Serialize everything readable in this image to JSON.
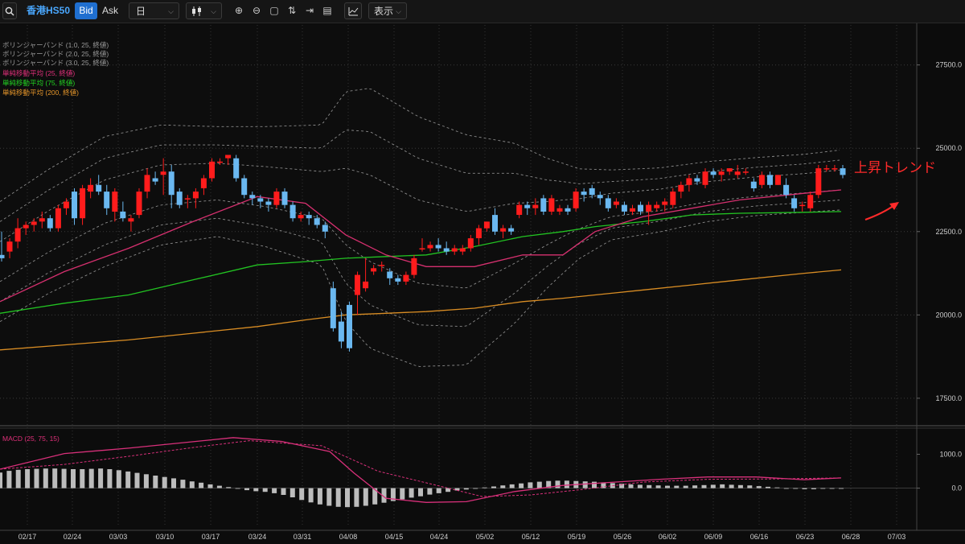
{
  "toolbar": {
    "symbol": "香港HS50",
    "bid_label": "Bid",
    "ask_label": "Ask",
    "period": "日",
    "display_label": "表示"
  },
  "legend": [
    {
      "text": "ボリンジャーバンド (1.0, 25, 終値)",
      "color": "#9a9a9a"
    },
    {
      "text": "ボリンジャーバンド (2.0, 25, 終値)",
      "color": "#9a9a9a"
    },
    {
      "text": "ボリンジャーバンド (3.0, 25, 終値)",
      "color": "#9a9a9a"
    },
    {
      "text": "単純移動平均 (25, 終値)",
      "color": "#e0307a"
    },
    {
      "text": "単純移動平均 (75, 終値)",
      "color": "#22d322"
    },
    {
      "text": "単純移動平均 (200, 終値)",
      "color": "#e6962a"
    }
  ],
  "macd_label": "MACD (25, 75, 15)",
  "annotation": "上昇トレンド",
  "colors": {
    "up": "#ff1c1c",
    "down": "#6ab8f0",
    "bb": "#8a8a8a",
    "sma25": "#d6306f",
    "sma75": "#22c322",
    "sma200": "#d98d24",
    "macd": "#d8307a",
    "hist": "#bcbcbc"
  },
  "chart_data": {
    "type": "candlestick",
    "y_ticks": [
      "17500.0",
      "20000.0",
      "22500.0",
      "25000.0",
      "27500.0"
    ],
    "ylim": [
      16700,
      28700
    ],
    "x_ticks": [
      "02/17",
      "02/24",
      "03/03",
      "03/10",
      "03/17",
      "03/24",
      "03/31",
      "04/08",
      "04/15",
      "04/24",
      "05/02",
      "05/12",
      "05/19",
      "05/26",
      "06/02",
      "06/09",
      "06/16",
      "06/23",
      "06/28",
      "07/03"
    ],
    "candles": [
      [
        21800,
        22500,
        21600,
        21700
      ],
      [
        21900,
        22300,
        21700,
        22200
      ],
      [
        22200,
        22900,
        22000,
        22600
      ],
      [
        22600,
        22800,
        22400,
        22700
      ],
      [
        22700,
        22900,
        22500,
        22800
      ],
      [
        22800,
        23100,
        22600,
        22900
      ],
      [
        22900,
        23000,
        22500,
        22600
      ],
      [
        22600,
        23300,
        22500,
        23200
      ],
      [
        23200,
        23500,
        23000,
        23400
      ],
      [
        23700,
        23800,
        22700,
        22900
      ],
      [
        22900,
        23900,
        22700,
        23800
      ],
      [
        23700,
        24100,
        23500,
        23900
      ],
      [
        23900,
        24200,
        23600,
        23700
      ],
      [
        23700,
        23900,
        23000,
        23200
      ],
      [
        23100,
        23800,
        22800,
        23700
      ],
      [
        23100,
        23400,
        22800,
        22900
      ],
      [
        22800,
        23000,
        22500,
        22900
      ],
      [
        23000,
        23800,
        22900,
        23700
      ],
      [
        23700,
        24400,
        23500,
        24200
      ],
      [
        24100,
        24300,
        23900,
        24000
      ],
      [
        24200,
        24700,
        23600,
        24300
      ],
      [
        24300,
        24500,
        23200,
        23600
      ],
      [
        23700,
        23800,
        23200,
        23300
      ],
      [
        23500,
        23600,
        23200,
        23500
      ],
      [
        23500,
        23800,
        23200,
        23700
      ],
      [
        23800,
        24200,
        23600,
        24100
      ],
      [
        24100,
        24700,
        24000,
        24600
      ],
      [
        24600,
        24700,
        24500,
        24600
      ],
      [
        24700,
        24800,
        24500,
        24800
      ],
      [
        24700,
        24800,
        24000,
        24100
      ],
      [
        24100,
        24200,
        23500,
        23600
      ],
      [
        23600,
        23700,
        23300,
        23500
      ],
      [
        23500,
        23600,
        23200,
        23400
      ],
      [
        23400,
        23500,
        23100,
        23300
      ],
      [
        23300,
        23800,
        23200,
        23700
      ],
      [
        23700,
        23800,
        23200,
        23300
      ],
      [
        23300,
        23400,
        22800,
        22900
      ],
      [
        22900,
        23100,
        22800,
        23000
      ],
      [
        23000,
        23100,
        22700,
        22900
      ],
      [
        22900,
        23000,
        22600,
        22700
      ],
      [
        22700,
        22800,
        22300,
        22500
      ],
      [
        20800,
        21000,
        19500,
        19600
      ],
      [
        19800,
        20100,
        19000,
        19200
      ],
      [
        20300,
        20400,
        18900,
        19000
      ],
      [
        20600,
        21300,
        20000,
        21200
      ],
      [
        20800,
        21700,
        20700,
        21000
      ],
      [
        21300,
        21500,
        21200,
        21400
      ],
      [
        21500,
        21600,
        21300,
        21500
      ],
      [
        21300,
        21400,
        20900,
        21100
      ],
      [
        21100,
        21200,
        20900,
        21000
      ],
      [
        21000,
        21300,
        20900,
        21200
      ],
      [
        21200,
        21800,
        21100,
        21700
      ],
      [
        22000,
        22300,
        21900,
        22000
      ],
      [
        22000,
        22200,
        21900,
        22100
      ],
      [
        22100,
        22300,
        21900,
        22000
      ],
      [
        22000,
        22200,
        21800,
        21900
      ],
      [
        21900,
        22100,
        21800,
        22000
      ],
      [
        21900,
        22100,
        21800,
        22000
      ],
      [
        22000,
        22400,
        21900,
        22300
      ],
      [
        22300,
        22700,
        22100,
        22600
      ],
      [
        22600,
        22800,
        22500,
        22800
      ],
      [
        23000,
        23200,
        22400,
        22500
      ],
      [
        22500,
        22700,
        22300,
        22600
      ],
      [
        22600,
        22700,
        22400,
        22500
      ],
      [
        23000,
        23400,
        22900,
        23300
      ],
      [
        23300,
        23400,
        23000,
        23200
      ],
      [
        23200,
        23500,
        23000,
        23300
      ],
      [
        23500,
        23600,
        23000,
        23100
      ],
      [
        23100,
        23600,
        23000,
        23500
      ],
      [
        23100,
        23300,
        23000,
        23200
      ],
      [
        23200,
        23300,
        23000,
        23100
      ],
      [
        23200,
        23800,
        23100,
        23700
      ],
      [
        23700,
        23800,
        23400,
        23600
      ],
      [
        23800,
        23900,
        23500,
        23600
      ],
      [
        23600,
        23700,
        23300,
        23500
      ],
      [
        23500,
        23600,
        23100,
        23200
      ],
      [
        23300,
        23500,
        23200,
        23400
      ],
      [
        23300,
        23400,
        23000,
        23100
      ],
      [
        23100,
        23300,
        23000,
        23200
      ],
      [
        23300,
        23400,
        23000,
        23100
      ],
      [
        23100,
        23400,
        22700,
        23300
      ],
      [
        23200,
        23400,
        23100,
        23300
      ],
      [
        23300,
        23500,
        23100,
        23400
      ],
      [
        23300,
        23800,
        23200,
        23700
      ],
      [
        23700,
        24000,
        23500,
        23900
      ],
      [
        23900,
        24200,
        23700,
        24100
      ],
      [
        24100,
        24200,
        23900,
        24000
      ],
      [
        23900,
        24400,
        23800,
        24300
      ],
      [
        24300,
        24400,
        24100,
        24200
      ],
      [
        24200,
        24400,
        24000,
        24300
      ],
      [
        24300,
        24400,
        24200,
        24400
      ],
      [
        24200,
        24500,
        24100,
        24300
      ],
      [
        24300,
        24400,
        24200,
        24300
      ],
      [
        24000,
        24100,
        23700,
        23800
      ],
      [
        23900,
        24300,
        23800,
        24200
      ],
      [
        24200,
        24300,
        23800,
        23900
      ],
      [
        23900,
        24200,
        23900,
        24200
      ],
      [
        23900,
        24100,
        23500,
        23600
      ],
      [
        23500,
        23600,
        23100,
        23200
      ],
      [
        23300,
        23400,
        23100,
        23300
      ],
      [
        23200,
        23700,
        23100,
        23600
      ],
      [
        23600,
        24500,
        23500,
        24400
      ],
      [
        24400,
        24500,
        24300,
        24400
      ],
      [
        24400,
        24500,
        24300,
        24400
      ],
      [
        24400,
        24500,
        24100,
        24200
      ]
    ],
    "sma25": [
      [
        0,
        20400
      ],
      [
        80,
        21300
      ],
      [
        160,
        22000
      ],
      [
        240,
        22800
      ],
      [
        320,
        23550
      ],
      [
        380,
        23350
      ],
      [
        430,
        22400
      ],
      [
        480,
        21800
      ],
      [
        530,
        21450
      ],
      [
        590,
        21450
      ],
      [
        650,
        21800
      ],
      [
        700,
        21800
      ],
      [
        740,
        22500
      ],
      [
        800,
        22950
      ],
      [
        860,
        23200
      ],
      [
        920,
        23450
      ],
      [
        1000,
        23650
      ],
      [
        1046,
        23750
      ]
    ],
    "sma75": [
      [
        0,
        20050
      ],
      [
        80,
        20350
      ],
      [
        160,
        20600
      ],
      [
        240,
        21050
      ],
      [
        320,
        21500
      ],
      [
        380,
        21600
      ],
      [
        430,
        21700
      ],
      [
        480,
        21750
      ],
      [
        530,
        21800
      ],
      [
        590,
        22050
      ],
      [
        650,
        22350
      ],
      [
        700,
        22500
      ],
      [
        740,
        22650
      ],
      [
        800,
        22800
      ],
      [
        860,
        23000
      ],
      [
        920,
        23050
      ],
      [
        1000,
        23080
      ],
      [
        1046,
        23100
      ]
    ],
    "sma200": [
      [
        0,
        18950
      ],
      [
        80,
        19100
      ],
      [
        160,
        19250
      ],
      [
        240,
        19450
      ],
      [
        320,
        19650
      ],
      [
        380,
        19850
      ],
      [
        430,
        20000
      ],
      [
        480,
        20050
      ],
      [
        530,
        20100
      ],
      [
        590,
        20200
      ],
      [
        650,
        20400
      ],
      [
        700,
        20500
      ],
      [
        740,
        20600
      ],
      [
        800,
        20750
      ],
      [
        860,
        20900
      ],
      [
        920,
        21050
      ],
      [
        1000,
        21250
      ],
      [
        1046,
        21350
      ]
    ],
    "bb_center": [
      [
        0,
        21600
      ],
      [
        60,
        22500
      ],
      [
        130,
        23400
      ],
      [
        200,
        23900
      ],
      [
        270,
        24000
      ],
      [
        330,
        23850
      ],
      [
        400,
        23600
      ],
      [
        460,
        22900
      ],
      [
        520,
        22200
      ],
      [
        580,
        21950
      ],
      [
        640,
        22450
      ],
      [
        700,
        22900
      ],
      [
        760,
        23300
      ],
      [
        820,
        23450
      ],
      [
        880,
        23700
      ],
      [
        940,
        23850
      ],
      [
        1000,
        23950
      ],
      [
        1046,
        24050
      ]
    ],
    "bb_sigma": [
      [
        0,
        600
      ],
      [
        60,
        620
      ],
      [
        130,
        650
      ],
      [
        200,
        600
      ],
      [
        270,
        550
      ],
      [
        330,
        600
      ],
      [
        400,
        700
      ],
      [
        430,
        1150
      ],
      [
        460,
        1300
      ],
      [
        520,
        1250
      ],
      [
        580,
        1150
      ],
      [
        640,
        900
      ],
      [
        680,
        650
      ],
      [
        720,
        450
      ],
      [
        760,
        350
      ],
      [
        820,
        320
      ],
      [
        880,
        300
      ],
      [
        940,
        290
      ],
      [
        1000,
        290
      ],
      [
        1046,
        300
      ]
    ],
    "macd": [
      [
        0,
        560
      ],
      [
        80,
        1020
      ],
      [
        160,
        1180
      ],
      [
        240,
        1370
      ],
      [
        290,
        1490
      ],
      [
        350,
        1380
      ],
      [
        410,
        1080
      ],
      [
        440,
        450
      ],
      [
        480,
        -300
      ],
      [
        530,
        -420
      ],
      [
        580,
        -400
      ],
      [
        640,
        -100
      ],
      [
        700,
        80
      ],
      [
        760,
        170
      ],
      [
        820,
        260
      ],
      [
        880,
        330
      ],
      [
        940,
        330
      ],
      [
        1000,
        250
      ],
      [
        1046,
        300
      ]
    ],
    "macd_signal": [
      [
        0,
        560
      ],
      [
        80,
        700
      ],
      [
        160,
        940
      ],
      [
        240,
        1200
      ],
      [
        310,
        1400
      ],
      [
        400,
        1250
      ],
      [
        470,
        500
      ],
      [
        540,
        100
      ],
      [
        600,
        -250
      ],
      [
        660,
        -200
      ],
      [
        720,
        -50
      ],
      [
        800,
        180
      ],
      [
        880,
        260
      ],
      [
        960,
        270
      ],
      [
        1046,
        300
      ]
    ],
    "macd_ylim": [
      -1150,
      1700
    ],
    "macd_ticks": [
      "0.0",
      "1000.0"
    ],
    "macd_hist": [
      460,
      510,
      540,
      560,
      570,
      580,
      580,
      570,
      560,
      560,
      570,
      580,
      560,
      530,
      490,
      450,
      410,
      370,
      330,
      290,
      250,
      200,
      160,
      110,
      70,
      30,
      -20,
      -60,
      -90,
      -110,
      -150,
      -200,
      -270,
      -350,
      -420,
      -480,
      -520,
      -550,
      -560,
      -550,
      -520,
      -480,
      -430,
      -380,
      -330,
      -280,
      -240,
      -190,
      -150,
      -110,
      -70,
      -40,
      -10,
      20,
      50,
      80,
      110,
      140,
      170,
      190,
      210,
      220,
      220,
      210,
      200,
      190,
      170,
      150,
      130,
      110,
      100,
      90,
      80,
      70,
      70,
      70,
      80,
      90,
      100,
      110,
      100,
      90,
      80,
      60,
      40,
      20,
      0,
      -20,
      -30,
      -30,
      -20,
      -10,
      0
    ]
  }
}
